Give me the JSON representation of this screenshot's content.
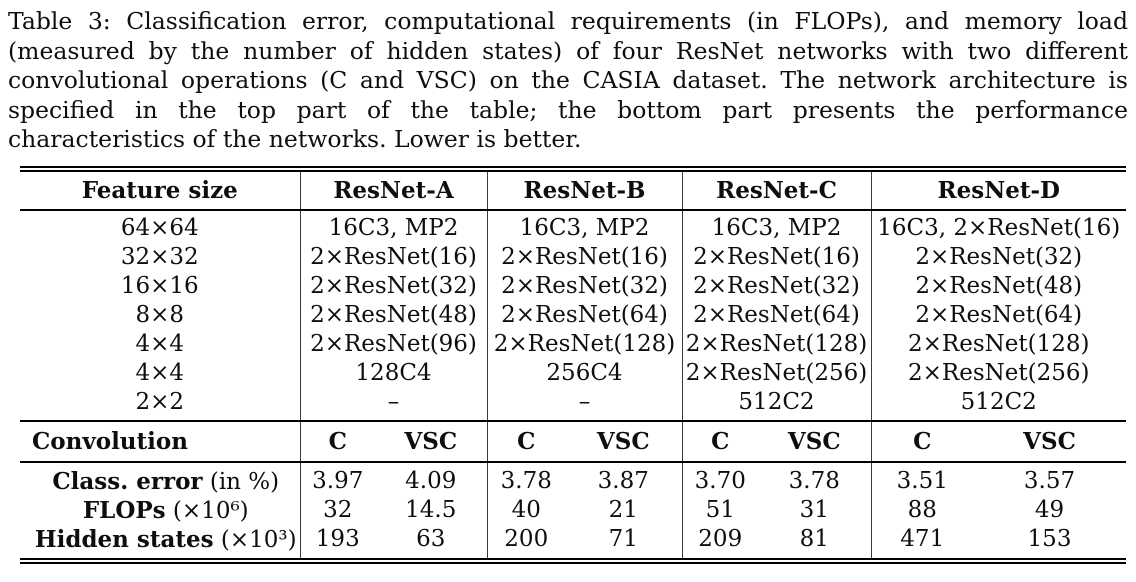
{
  "caption": {
    "label": "Table 3:",
    "text": "Classification error, computational requirements (in FLOPs), and memory load (measured by the number of hidden states) of four ResNet networks with two different convolutional operations (C and VSC) on the CASIA dataset. The network architecture is specified in the top part of the table; the bottom part presents the performance characteristics of the networks. Lower is better."
  },
  "table": {
    "header": {
      "feature_col": "Feature size",
      "networks": [
        "ResNet-A",
        "ResNet-B",
        "ResNet-C",
        "ResNet-D"
      ]
    },
    "architecture_rows": [
      {
        "feature": "64×64",
        "cells": [
          "16C3, MP2",
          "16C3, MP2",
          "16C3, MP2",
          "16C3, 2×ResNet(16)"
        ]
      },
      {
        "feature": "32×32",
        "cells": [
          "2×ResNet(16)",
          "2×ResNet(16)",
          "2×ResNet(16)",
          "2×ResNet(32)"
        ]
      },
      {
        "feature": "16×16",
        "cells": [
          "2×ResNet(32)",
          "2×ResNet(32)",
          "2×ResNet(32)",
          "2×ResNet(48)"
        ]
      },
      {
        "feature": "8×8",
        "cells": [
          "2×ResNet(48)",
          "2×ResNet(64)",
          "2×ResNet(64)",
          "2×ResNet(64)"
        ]
      },
      {
        "feature": "4×4",
        "cells": [
          "2×ResNet(96)",
          "2×ResNet(128)",
          "2×ResNet(128)",
          "2×ResNet(128)"
        ]
      },
      {
        "feature": "4×4",
        "cells": [
          "128C4",
          "256C4",
          "2×ResNet(256)",
          "2×ResNet(256)"
        ]
      },
      {
        "feature": "2×2",
        "cells": [
          "–",
          "–",
          "512C2",
          "512C2"
        ]
      }
    ],
    "convolution": {
      "label": "Convolution",
      "types": [
        "C",
        "VSC"
      ]
    },
    "metrics": [
      {
        "label_bold": "Class. error",
        "label_rest": " (in %)",
        "values": [
          "3.97",
          "4.09",
          "3.78",
          "3.87",
          "3.70",
          "3.78",
          "3.51",
          "3.57"
        ]
      },
      {
        "label_bold": "FLOPs",
        "label_rest": " (×10⁶)",
        "values": [
          "32",
          "14.5",
          "40",
          "21",
          "51",
          "31",
          "88",
          "49"
        ]
      },
      {
        "label_bold": "Hidden states",
        "label_rest": " (×10³)",
        "values": [
          "193",
          "63",
          "200",
          "71",
          "209",
          "81",
          "471",
          "153"
        ]
      }
    ]
  }
}
